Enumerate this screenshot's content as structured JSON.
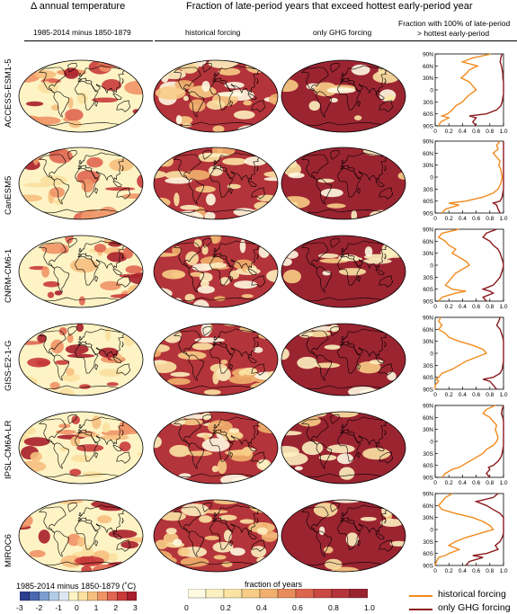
{
  "headers": {
    "left_title": "Δ annual temperature",
    "center_title": "Fraction of late-period years that exceed hottest early-period year",
    "col1_sub": "1985-2014 minus 1850-1879",
    "col2_sub": "historical forcing",
    "col3_sub": "only GHG forcing",
    "col4_sub_line1": "Fraction with 100% of  late-period",
    "col4_sub_line2": "> hottest early-period"
  },
  "models": [
    "ACCESS-ESM1-5",
    "CanESM5",
    "CNRM-CM6-1",
    "GISS-E2-1-G",
    "IPSL-CM6A-LR",
    "MIROC6"
  ],
  "colorbar_temp": {
    "title": "1985-2014 minus 1850-1879 (˚C)",
    "ticks": [
      "-3",
      "-2",
      "-1",
      "0",
      "1",
      "2",
      "3"
    ],
    "colors": [
      "#2c3e8f",
      "#4a68b0",
      "#7c9ed0",
      "#b3cbe6",
      "#dde7f2",
      "#fdf3c4",
      "#fbe0a0",
      "#f7bf7f",
      "#ef9467",
      "#e06651",
      "#c93b3b",
      "#a91e2b"
    ]
  },
  "colorbar_frac": {
    "title": "fraction of years",
    "ticks": [
      "0",
      "0.2",
      "0.4",
      "0.6",
      "0.8",
      "1.0"
    ],
    "colors": [
      "#fffae2",
      "#fdf0c0",
      "#fbe3a4",
      "#f7cc86",
      "#f1b06e",
      "#e88c5c",
      "#dc664d",
      "#c94841",
      "#b3343a",
      "#9b2431"
    ]
  },
  "legend": {
    "historical_label": "historical forcing",
    "ghg_label": "only GHG forcing",
    "historical_color": "#f28a1d",
    "ghg_color": "#8b1a1e"
  },
  "chart_data": [
    {
      "type": "line",
      "title": "ACCESS-ESM1-5",
      "x_ticks": [
        "0",
        "0.2",
        "0.4",
        "0.6",
        "0.8",
        "1.0"
      ],
      "y_ticks": [
        "90N",
        "60N",
        "30N",
        "0",
        "30S",
        "60S",
        "90S"
      ],
      "xlim": [
        0,
        1
      ],
      "ylim": [
        -90,
        90
      ],
      "series": [
        {
          "name": "historical forcing",
          "lat": [
            90,
            80,
            70,
            60,
            50,
            40,
            30,
            20,
            10,
            0,
            -10,
            -20,
            -30,
            -40,
            -50,
            -60,
            -65,
            -70,
            -80,
            -90
          ],
          "values": [
            0.82,
            0.55,
            0.4,
            0.62,
            0.5,
            0.45,
            0.38,
            0.5,
            0.55,
            0.6,
            0.52,
            0.45,
            0.4,
            0.3,
            0.25,
            0.18,
            0.1,
            0.2,
            0.08,
            0.05
          ]
        },
        {
          "name": "only GHG forcing",
          "lat": [
            90,
            80,
            70,
            60,
            50,
            40,
            30,
            20,
            10,
            0,
            -10,
            -20,
            -30,
            -40,
            -50,
            -60,
            -65,
            -70,
            -80,
            -90
          ],
          "values": [
            0.98,
            0.96,
            0.95,
            0.97,
            0.98,
            0.99,
            0.99,
            1.0,
            1.0,
            1.0,
            1.0,
            0.99,
            0.98,
            0.96,
            0.9,
            0.75,
            0.5,
            0.6,
            0.55,
            0.6
          ]
        }
      ]
    },
    {
      "type": "line",
      "title": "CanESM5",
      "x_ticks": [
        "0",
        "0.2",
        "0.4",
        "0.6",
        "0.8",
        "1.0"
      ],
      "y_ticks": [
        "90N",
        "60N",
        "30N",
        "0",
        "30S",
        "60S",
        "90S"
      ],
      "xlim": [
        0,
        1
      ],
      "ylim": [
        -90,
        90
      ],
      "series": [
        {
          "name": "historical forcing",
          "lat": [
            90,
            80,
            70,
            60,
            50,
            40,
            30,
            20,
            10,
            0,
            -10,
            -20,
            -30,
            -40,
            -50,
            -60,
            -65,
            -70,
            -80,
            -90
          ],
          "values": [
            0.95,
            0.9,
            0.92,
            0.85,
            0.9,
            0.95,
            0.93,
            0.96,
            0.97,
            0.98,
            0.97,
            0.95,
            0.92,
            0.85,
            0.7,
            0.45,
            0.2,
            0.35,
            0.15,
            0.1
          ]
        },
        {
          "name": "only GHG forcing",
          "lat": [
            90,
            80,
            70,
            60,
            50,
            40,
            30,
            20,
            10,
            0,
            -10,
            -20,
            -30,
            -40,
            -50,
            -60,
            -65,
            -70,
            -80,
            -90
          ],
          "values": [
            1.0,
            1.0,
            1.0,
            1.0,
            1.0,
            1.0,
            1.0,
            1.0,
            1.0,
            1.0,
            1.0,
            1.0,
            1.0,
            0.99,
            0.98,
            0.95,
            0.85,
            0.9,
            0.92,
            0.95
          ]
        }
      ]
    },
    {
      "type": "line",
      "title": "CNRM-CM6-1",
      "x_ticks": [
        "0",
        "0.2",
        "0.4",
        "0.6",
        "0.8",
        "1.0"
      ],
      "y_ticks": [
        "90N",
        "60N",
        "30N",
        "0",
        "30S",
        "60S",
        "90S"
      ],
      "xlim": [
        0,
        1
      ],
      "ylim": [
        -90,
        90
      ],
      "series": [
        {
          "name": "historical forcing",
          "lat": [
            90,
            80,
            70,
            60,
            50,
            40,
            30,
            20,
            10,
            0,
            -10,
            -20,
            -30,
            -40,
            -50,
            -60,
            -65,
            -70,
            -80,
            -90
          ],
          "values": [
            0.35,
            0.1,
            0.05,
            0.15,
            0.2,
            0.3,
            0.25,
            0.35,
            0.45,
            0.5,
            0.4,
            0.3,
            0.25,
            0.2,
            0.15,
            0.25,
            0.45,
            0.3,
            0.1,
            0.05
          ]
        },
        {
          "name": "only GHG forcing",
          "lat": [
            90,
            80,
            70,
            60,
            50,
            40,
            30,
            20,
            10,
            0,
            -10,
            -20,
            -30,
            -40,
            -50,
            -60,
            -65,
            -70,
            -80,
            -90
          ],
          "values": [
            0.9,
            0.75,
            0.7,
            0.8,
            0.85,
            0.92,
            0.95,
            0.97,
            0.99,
            1.0,
            0.99,
            0.97,
            0.95,
            0.9,
            0.85,
            0.7,
            0.8,
            0.85,
            0.7,
            0.75
          ]
        }
      ]
    },
    {
      "type": "line",
      "title": "GISS-E2-1-G",
      "x_ticks": [
        "0",
        "0.2",
        "0.4",
        "0.6",
        "0.8",
        "1.0"
      ],
      "y_ticks": [
        "90N",
        "60N",
        "30N",
        "0",
        "30S",
        "60S",
        "90S"
      ],
      "xlim": [
        0,
        1
      ],
      "ylim": [
        -90,
        90
      ],
      "series": [
        {
          "name": "historical forcing",
          "lat": [
            90,
            80,
            70,
            60,
            50,
            40,
            30,
            20,
            10,
            0,
            -10,
            -20,
            -30,
            -40,
            -50,
            -60,
            -65,
            -70,
            -80,
            -90
          ],
          "values": [
            0.08,
            0.05,
            0.1,
            0.05,
            0.15,
            0.2,
            0.35,
            0.55,
            0.7,
            0.75,
            0.6,
            0.45,
            0.35,
            0.25,
            0.1,
            0.05,
            0.02,
            0.05,
            0.0,
            0.0
          ]
        },
        {
          "name": "only GHG forcing",
          "lat": [
            90,
            80,
            70,
            60,
            50,
            40,
            30,
            20,
            10,
            0,
            -10,
            -20,
            -30,
            -40,
            -50,
            -60,
            -65,
            -70,
            -80,
            -90
          ],
          "values": [
            0.95,
            0.93,
            0.9,
            0.95,
            0.97,
            0.99,
            1.0,
            1.0,
            1.0,
            1.0,
            1.0,
            1.0,
            0.99,
            0.98,
            0.95,
            0.85,
            0.7,
            0.8,
            0.85,
            0.9
          ]
        }
      ]
    },
    {
      "type": "line",
      "title": "IPSL-CM6A-LR",
      "x_ticks": [
        "0",
        "0.2",
        "0.4",
        "0.6",
        "0.8",
        "1.0"
      ],
      "y_ticks": [
        "90N",
        "60N",
        "30N",
        "0",
        "30S",
        "60S",
        "90S"
      ],
      "xlim": [
        0,
        1
      ],
      "ylim": [
        -90,
        90
      ],
      "series": [
        {
          "name": "historical forcing",
          "lat": [
            90,
            80,
            70,
            60,
            50,
            40,
            30,
            20,
            10,
            0,
            -10,
            -20,
            -30,
            -40,
            -50,
            -60,
            -65,
            -70,
            -80,
            -90
          ],
          "values": [
            0.88,
            0.75,
            0.7,
            0.8,
            0.85,
            0.9,
            0.88,
            0.9,
            0.92,
            0.9,
            0.85,
            0.75,
            0.7,
            0.6,
            0.5,
            0.4,
            0.35,
            0.25,
            0.15,
            0.1
          ]
        },
        {
          "name": "only GHG forcing",
          "lat": [
            90,
            80,
            70,
            60,
            50,
            40,
            30,
            20,
            10,
            0,
            -10,
            -20,
            -30,
            -40,
            -50,
            -60,
            -65,
            -70,
            -80,
            -90
          ],
          "values": [
            1.0,
            0.98,
            0.97,
            0.99,
            1.0,
            1.0,
            1.0,
            1.0,
            1.0,
            1.0,
            1.0,
            0.99,
            0.98,
            0.96,
            0.92,
            0.85,
            0.78,
            0.8,
            0.75,
            0.8
          ]
        }
      ]
    },
    {
      "type": "line",
      "title": "MIROC6",
      "x_ticks": [
        "0",
        "0.2",
        "0.4",
        "0.6",
        "0.8",
        "1.0"
      ],
      "y_ticks": [
        "90N",
        "60N",
        "30N",
        "0",
        "30S",
        "60S",
        "90S"
      ],
      "xlim": [
        0,
        1
      ],
      "ylim": [
        -90,
        90
      ],
      "series": [
        {
          "name": "historical forcing",
          "lat": [
            90,
            80,
            70,
            60,
            50,
            40,
            30,
            20,
            10,
            0,
            -10,
            -20,
            -30,
            -40,
            -50,
            -60,
            -65,
            -70,
            -80,
            -90
          ],
          "values": [
            0.25,
            0.15,
            0.1,
            0.05,
            0.1,
            0.3,
            0.55,
            0.7,
            0.8,
            0.85,
            0.65,
            0.45,
            0.3,
            0.2,
            0.35,
            0.2,
            0.15,
            0.05,
            0.02,
            0.0
          ]
        },
        {
          "name": "only GHG forcing",
          "lat": [
            90,
            80,
            70,
            60,
            50,
            40,
            30,
            20,
            10,
            0,
            -10,
            -20,
            -30,
            -40,
            -50,
            -60,
            -65,
            -70,
            -80,
            -90
          ],
          "values": [
            0.92,
            0.85,
            0.6,
            0.75,
            0.85,
            0.95,
            1.0,
            1.0,
            1.0,
            1.0,
            1.0,
            0.98,
            0.95,
            0.88,
            0.92,
            0.75,
            0.55,
            0.7,
            0.5,
            0.45
          ]
        }
      ]
    }
  ]
}
